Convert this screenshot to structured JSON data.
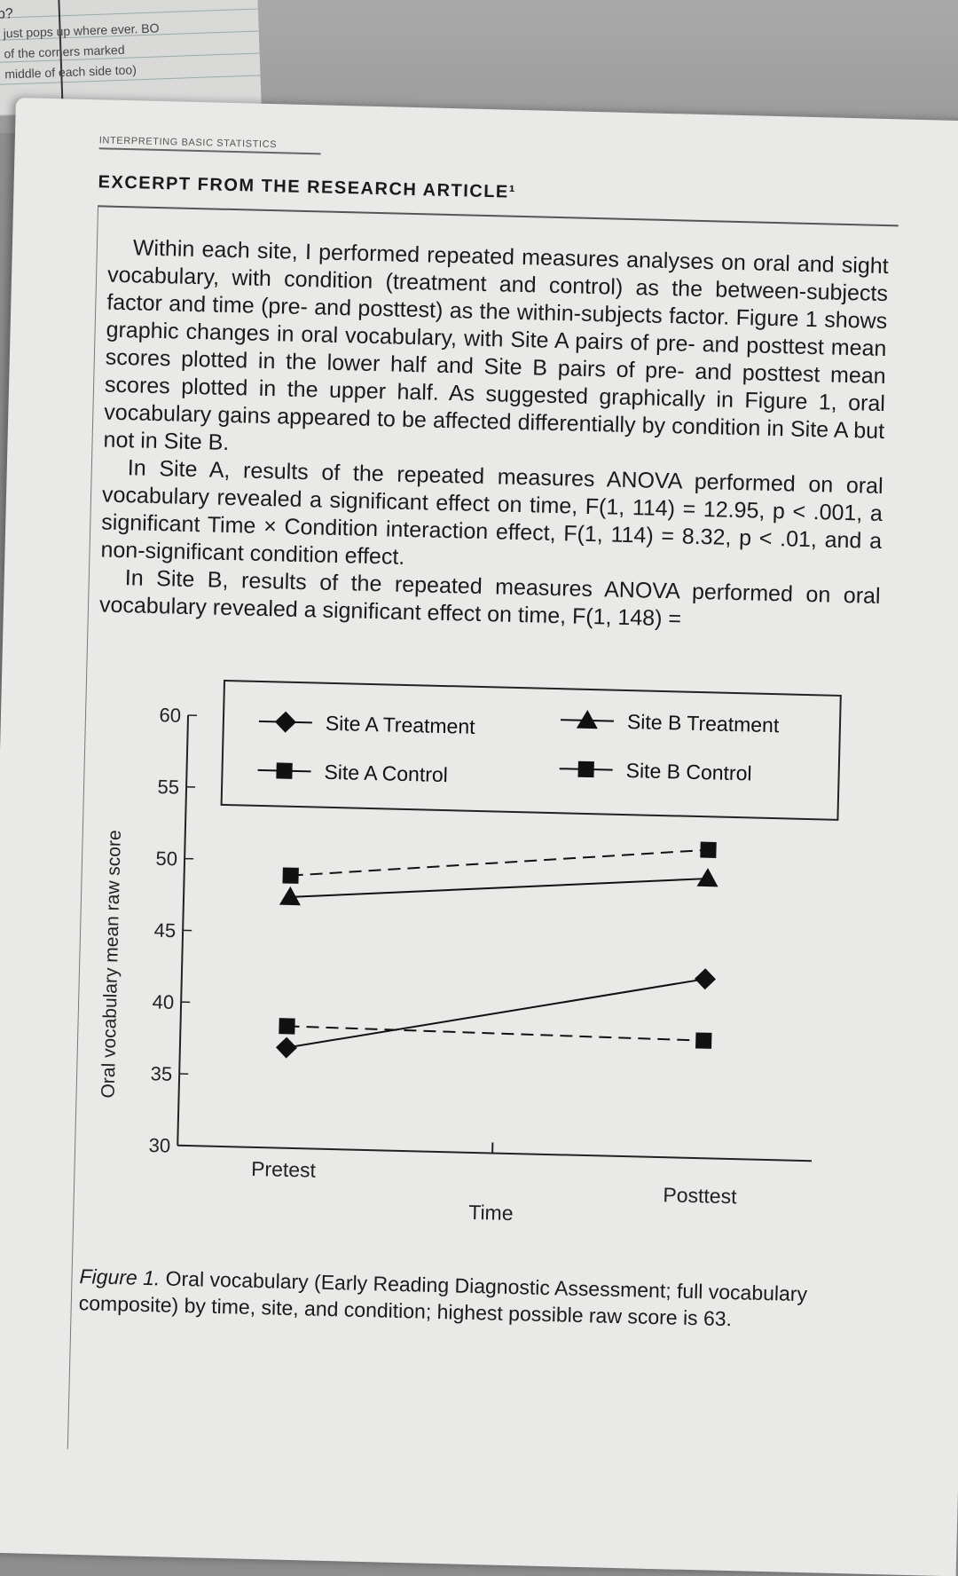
{
  "background_note": {
    "lines": [
      "p?",
      "just pops up where ever. BO",
      "of the corners marked",
      "middle of each side too)"
    ]
  },
  "running_head": "INTERPRETING BASIC STATISTICS",
  "section_title": "EXCERPT FROM THE RESEARCH ARTICLE¹",
  "paragraphs": [
    "Within each site, I performed repeated measures analyses on oral and sight vocabulary, with condition (treatment and control) as the between-subjects factor and time (pre- and posttest) as the within-subjects factor. Figure 1 shows graphic changes in oral vocabulary, with Site A pairs of pre- and posttest mean scores plotted in the lower half and Site B pairs of pre- and posttest mean scores plotted in the upper half. As suggested graphically in Figure 1, oral vocabulary gains appeared to be affected differentially by condition in Site A but not in Site B.",
    "In Site A, results of the repeated measures ANOVA performed on oral vocabulary revealed a significant effect on time, F(1, 114) = 12.95, p < .001, a significant Time × Condition interaction effect, F(1, 114) = 8.32, p < .01, and a non-significant condition effect.",
    "In Site B, results of the repeated measures ANOVA performed on oral vocabulary revealed a significant effect on time, F(1, 148) ="
  ],
  "chart_data": {
    "type": "line",
    "x": [
      "Pretest",
      "Posttest"
    ],
    "xlabel": "Time",
    "ylabel": "Oral vocabulary mean raw score",
    "ylim": [
      30,
      60
    ],
    "yticks": [
      30,
      35,
      40,
      45,
      50,
      55,
      60
    ],
    "legend_position": "top",
    "series": [
      {
        "name": "Site A Treatment",
        "marker": "diamond",
        "dash": "solid",
        "values": [
          37,
          42.5
        ]
      },
      {
        "name": "Site A Control",
        "marker": "square",
        "dash": "dashed",
        "values": [
          38.5,
          38.2
        ]
      },
      {
        "name": "Site B Treatment",
        "marker": "triangle",
        "dash": "solid",
        "values": [
          47.5,
          49.5
        ]
      },
      {
        "name": "Site B Control",
        "marker": "square",
        "dash": "dashed",
        "values": [
          49,
          51.5
        ]
      }
    ]
  },
  "caption": {
    "label": "Figure 1.",
    "text": "Oral vocabulary (Early Reading Diagnostic Assessment; full vocabulary composite) by time, site, and condition; highest possible raw score is 63."
  }
}
